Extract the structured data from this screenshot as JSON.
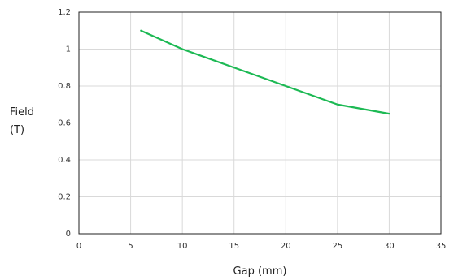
{
  "chart_data": {
    "type": "line",
    "xlabel": "Gap (mm)",
    "ylabel_lines": [
      "Field",
      "(T)"
    ],
    "xlim": [
      0,
      35
    ],
    "ylim": [
      0,
      1.2
    ],
    "x_ticks": [
      0,
      5,
      10,
      15,
      20,
      25,
      30,
      35
    ],
    "y_ticks": [
      0,
      0.2,
      0.4,
      0.6,
      0.8,
      1,
      1.2
    ],
    "x_tick_labels": [
      "0",
      "5",
      "10",
      "15",
      "20",
      "25",
      "30",
      "35"
    ],
    "y_tick_labels": [
      "0",
      "0.2",
      "0.4",
      "0.6",
      "0.8",
      "1",
      "1.2"
    ],
    "grid": true,
    "series": [
      {
        "color": "#1db954",
        "x": [
          6,
          10,
          15,
          20,
          25,
          30
        ],
        "y": [
          1.1,
          1.0,
          0.9,
          0.8,
          0.7,
          0.65
        ]
      }
    ]
  }
}
